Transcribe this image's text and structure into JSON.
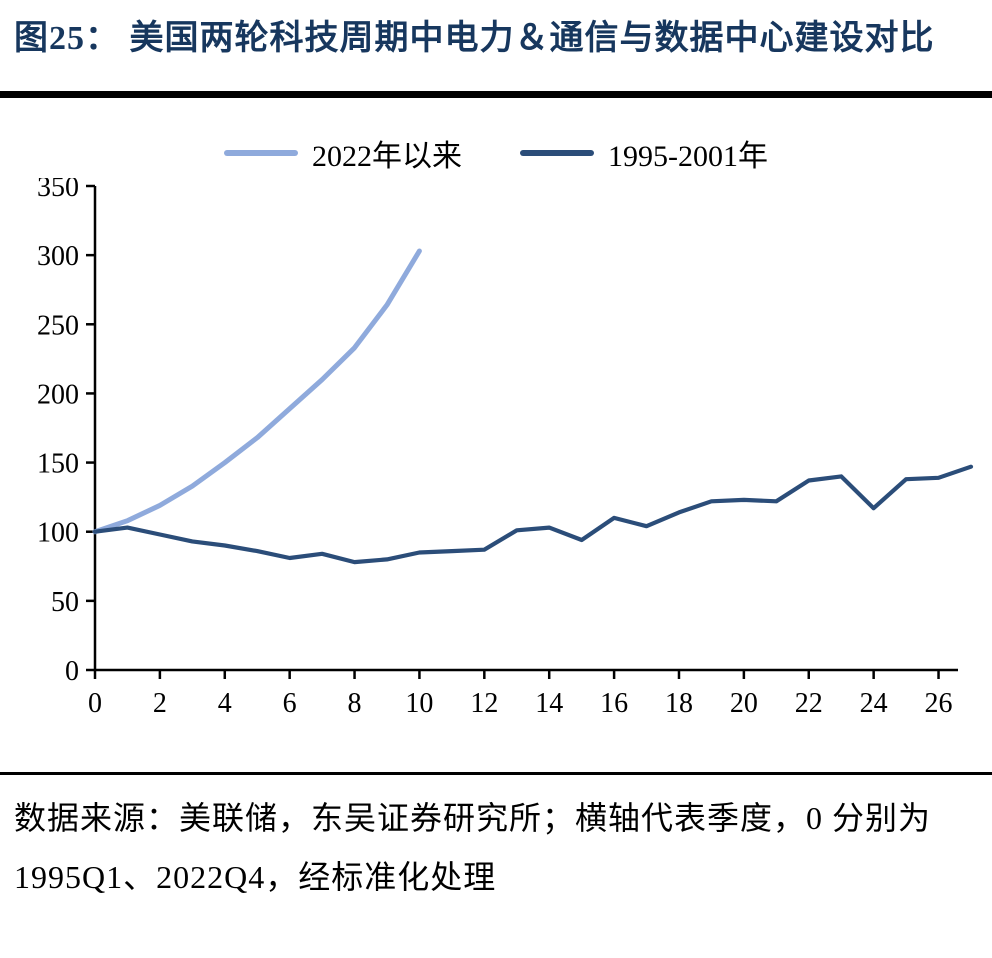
{
  "header": {
    "title": "图25：  美国两轮科技周期中电力＆通信与数据中心建设对比"
  },
  "footer": {
    "source_note": "数据来源：美联储，东吴证券研究所；横轴代表季度，0 分别为 1995Q1、2022Q4，经标准化处理"
  },
  "colors": {
    "title": "#17375E",
    "axis": "#000000",
    "series_light": "#8FAADC",
    "series_dark": "#2B4D79"
  },
  "chart_data": {
    "type": "line",
    "title": "美国两轮科技周期中电力＆通信与数据中心建设对比",
    "xlabel": "",
    "ylabel": "",
    "xlim": [
      0,
      26.6
    ],
    "ylim": [
      0,
      350
    ],
    "x_ticks": [
      0,
      2,
      4,
      6,
      8,
      10,
      12,
      14,
      16,
      18,
      20,
      22,
      24,
      26
    ],
    "y_ticks": [
      0,
      50,
      100,
      150,
      200,
      250,
      300,
      350
    ],
    "grid": false,
    "legend_position": "top",
    "series": [
      {
        "name": "2022年以来",
        "color": "#8FAADC",
        "x": [
          0,
          1,
          2,
          3,
          4,
          5,
          6,
          7,
          8,
          9,
          10
        ],
        "values": [
          100,
          108,
          119,
          133,
          150,
          168,
          189,
          210,
          233,
          264,
          303
        ]
      },
      {
        "name": "1995-2001年",
        "color": "#2B4D79",
        "x": [
          0,
          1,
          2,
          3,
          4,
          5,
          6,
          7,
          8,
          9,
          10,
          11,
          12,
          13,
          14,
          15,
          16,
          17,
          18,
          19,
          20,
          21,
          22,
          23,
          24,
          25,
          26,
          27
        ],
        "values": [
          100,
          103,
          98,
          93,
          90,
          86,
          81,
          84,
          78,
          80,
          85,
          86,
          87,
          101,
          103,
          94,
          110,
          104,
          114,
          122,
          123,
          122,
          137,
          140,
          117,
          138,
          139,
          147
        ]
      }
    ]
  }
}
